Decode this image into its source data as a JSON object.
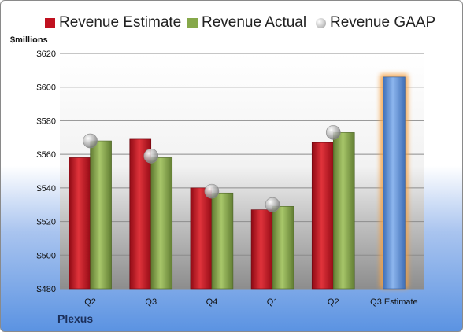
{
  "unit_label": "$millions",
  "company": "Plexus",
  "chart_data": {
    "type": "bar",
    "categories": [
      "Q2",
      "Q3",
      "Q4",
      "Q1",
      "Q2",
      "Q3 Estimate"
    ],
    "series": [
      {
        "name": "Revenue Estimate",
        "type": "bar",
        "color": "#c0111f",
        "values": [
          558,
          569,
          540,
          527,
          567,
          null
        ]
      },
      {
        "name": "Revenue Actual",
        "type": "bar",
        "color": "#86a84a",
        "values": [
          568,
          558,
          537,
          529,
          573,
          null
        ]
      },
      {
        "name": "Revenue GAAP",
        "type": "marker",
        "color": "#a6a6a6",
        "values": [
          568,
          559,
          538,
          530,
          573,
          null
        ]
      },
      {
        "name": "",
        "type": "bar",
        "color": "#5b8fd6",
        "values": [
          null,
          null,
          null,
          null,
          null,
          606
        ]
      }
    ],
    "highlight_color": "#f5a042",
    "ylim": [
      480,
      620
    ],
    "yticks": [
      480,
      500,
      520,
      540,
      560,
      580,
      600,
      620
    ],
    "ytick_labels": [
      "$480",
      "$500",
      "$520",
      "$540",
      "$560",
      "$580",
      "$600",
      "$620"
    ],
    "grid": true,
    "legend": "top"
  }
}
